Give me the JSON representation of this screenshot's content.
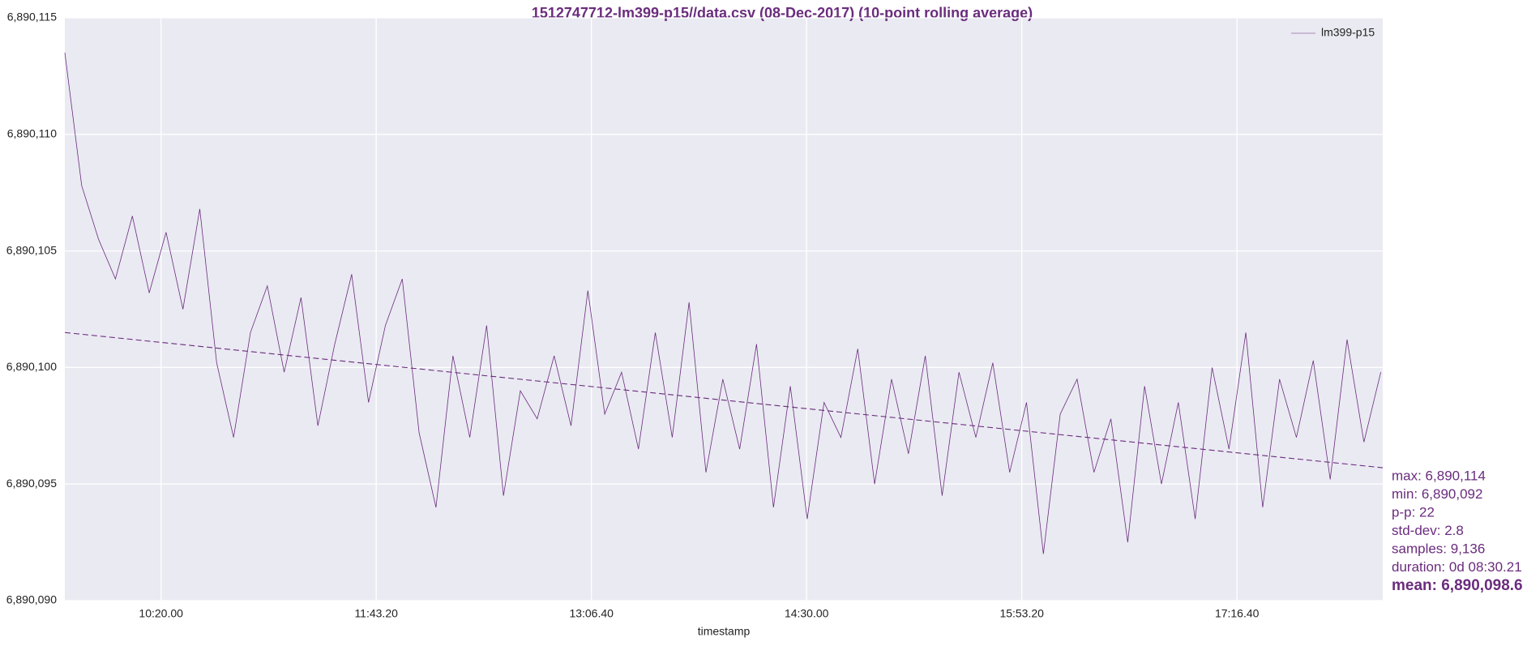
{
  "chart_data": {
    "type": "line",
    "title": "1512747712-lm399-p15//data.csv (08-Dec-2017) (10-point rolling average)",
    "xlabel": "timestamp",
    "x": [
      34965,
      35357,
      35749,
      36141,
      36533,
      36925,
      37317,
      37709,
      38101,
      38493,
      38885,
      39277,
      39669,
      40061,
      40453,
      40845,
      41237,
      41629,
      42021,
      42413,
      42805,
      43197,
      43589,
      43981,
      44373,
      44765,
      45157,
      45549,
      45941,
      46333,
      46725,
      47117,
      47509,
      47901,
      48293,
      48685,
      49077,
      49469,
      49861,
      50253,
      50645,
      51037,
      51429,
      51821,
      52213,
      52605,
      52997,
      53389,
      53781,
      54173,
      54565,
      54957,
      55349,
      55741,
      56133,
      56525,
      56917,
      57309,
      57701,
      58093,
      58485,
      58877,
      59269,
      59661,
      60053,
      60445,
      60837,
      61229,
      61621,
      62013,
      62405,
      62797,
      63189,
      63581,
      63973,
      64365,
      64757,
      65149,
      65541
    ],
    "series": [
      {
        "name": "lm399-p15",
        "color": "#6a2c7d",
        "values": [
          6890113.5,
          6890107.8,
          6890105.5,
          6890103.8,
          6890106.5,
          6890103.2,
          6890105.8,
          6890102.5,
          6890106.8,
          6890100.2,
          6890097.0,
          6890101.5,
          6890103.5,
          6890099.8,
          6890103.0,
          6890097.5,
          6890101.0,
          6890104.0,
          6890098.5,
          6890101.8,
          6890103.8,
          6890097.2,
          6890094.0,
          6890100.5,
          6890097.0,
          6890101.8,
          6890094.5,
          6890099.0,
          6890097.8,
          6890100.5,
          6890097.5,
          6890103.3,
          6890098.0,
          6890099.8,
          6890096.5,
          6890101.5,
          6890097.0,
          6890102.8,
          6890095.5,
          6890099.5,
          6890096.5,
          6890101.0,
          6890094.0,
          6890099.2,
          6890093.5,
          6890098.5,
          6890097.0,
          6890100.8,
          6890095.0,
          6890099.5,
          6890096.3,
          6890100.5,
          6890094.5,
          6890099.8,
          6890097.0,
          6890100.2,
          6890095.5,
          6890098.5,
          6890092.0,
          6890098.0,
          6890099.5,
          6890095.5,
          6890097.8,
          6890092.5,
          6890099.2,
          6890095.0,
          6890098.5,
          6890093.5,
          6890100.0,
          6890096.5,
          6890101.5,
          6890094.0,
          6890099.5,
          6890097.0,
          6890100.3,
          6890095.2,
          6890101.2,
          6890096.8,
          6890099.8
        ]
      }
    ],
    "trend": {
      "x": [
        34965,
        65586
      ],
      "values": [
        6890101.5,
        6890095.7
      ],
      "color": "#6a2c7d",
      "dashed": true
    },
    "xlim": [
      34965,
      65586
    ],
    "xticks": [
      {
        "value": 37200,
        "label": "10:20.00"
      },
      {
        "value": 42200,
        "label": "11:43.20"
      },
      {
        "value": 47200,
        "label": "13:06.40"
      },
      {
        "value": 52200,
        "label": "14:30.00"
      },
      {
        "value": 57200,
        "label": "15:53.20"
      },
      {
        "value": 62200,
        "label": "17:16.40"
      }
    ],
    "ylim": [
      6890090,
      6890115
    ],
    "yticks": [
      {
        "value": 6890090,
        "label": "6,890,090"
      },
      {
        "value": 6890095,
        "label": "6,890,095"
      },
      {
        "value": 6890100,
        "label": "6,890,100"
      },
      {
        "value": 6890105,
        "label": "6,890,105"
      },
      {
        "value": 6890110,
        "label": "6,890,110"
      },
      {
        "value": 6890115,
        "label": "6,890,115"
      }
    ],
    "grid": true,
    "legend": "upper right",
    "annotations": [
      "max: 6,890,114",
      "min: 6,890,092",
      "p-p: 22",
      "std-dev: 2.8",
      "samples: 9,136",
      "duration: 0d 08:30.21",
      "mean: 6,890,098.6"
    ]
  }
}
